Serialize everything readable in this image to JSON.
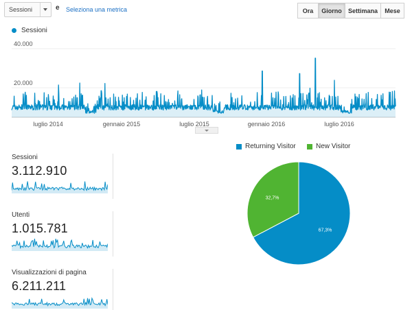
{
  "toolbar": {
    "metric_select": "Sessioni",
    "conjunction": "e",
    "add_metric_link": "Seleziona una metrica",
    "range_buttons": [
      {
        "label": "Ora",
        "active": false
      },
      {
        "label": "Giorno",
        "active": true
      },
      {
        "label": "Settimana",
        "active": false
      },
      {
        "label": "Mese",
        "active": false
      }
    ]
  },
  "chart_legend": {
    "label": "Sessioni",
    "color": "#058dc7"
  },
  "colors": {
    "sessions": "#058dc7",
    "returning": "#058dc7",
    "new_visitor": "#50b432"
  },
  "chart_data": [
    {
      "type": "area",
      "series": [
        {
          "name": "Sessioni",
          "values": "daily values ~3.000–35.000 over Jan 2014 – Jan 2017"
        }
      ],
      "x_tick_labels": [
        "luglio 2014",
        "gennaio 2015",
        "luglio 2015",
        "gennaio 2016",
        "luglio 2016"
      ],
      "y_tick_labels": [
        "20.000",
        "40.000"
      ],
      "ylim": [
        0,
        40000
      ],
      "grid": true,
      "peaks": [
        {
          "x": "2014-09-15",
          "y": 15500
        },
        {
          "x": "2015-12-20",
          "y": 27000
        },
        {
          "x": "2016-04-05",
          "y": 25500
        },
        {
          "x": "2016-05-20",
          "y": 34500
        }
      ]
    },
    {
      "type": "pie",
      "title": "",
      "categories": [
        "Returning Visitor",
        "New Visitor"
      ],
      "values": [
        67.3,
        32.7
      ],
      "labels": [
        "67,3%",
        "32,7%"
      ],
      "legend_position": "top"
    }
  ],
  "metrics": [
    {
      "label": "Sessioni",
      "value": "3.112.910"
    },
    {
      "label": "Utenti",
      "value": "1.015.781"
    },
    {
      "label": "Visualizzazioni di pagina",
      "value": "6.211.211"
    }
  ]
}
